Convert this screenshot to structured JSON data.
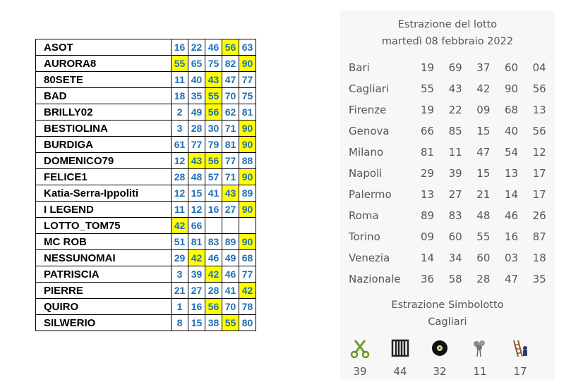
{
  "players": [
    {
      "name": "ASOT",
      "numbers": [
        "16",
        "22",
        "46",
        "56",
        "63"
      ],
      "highlighted": [
        false,
        false,
        false,
        true,
        false
      ]
    },
    {
      "name": "AURORA8",
      "numbers": [
        "55",
        "65",
        "75",
        "82",
        "90"
      ],
      "highlighted": [
        true,
        false,
        false,
        false,
        true
      ]
    },
    {
      "name": "80SETE",
      "numbers": [
        "11",
        "40",
        "43",
        "47",
        "77"
      ],
      "highlighted": [
        false,
        false,
        true,
        false,
        false
      ]
    },
    {
      "name": "BAD",
      "numbers": [
        "18",
        "35",
        "55",
        "70",
        "75"
      ],
      "highlighted": [
        false,
        false,
        true,
        false,
        false
      ]
    },
    {
      "name": "BRILLY02",
      "numbers": [
        "2",
        "49",
        "56",
        "62",
        "81"
      ],
      "highlighted": [
        false,
        false,
        true,
        false,
        false
      ]
    },
    {
      "name": "BESTIOLINA",
      "numbers": [
        "3",
        "28",
        "30",
        "71",
        "90"
      ],
      "highlighted": [
        false,
        false,
        false,
        false,
        true
      ]
    },
    {
      "name": "BURDIGA",
      "numbers": [
        "61",
        "77",
        "79",
        "81",
        "90"
      ],
      "highlighted": [
        false,
        false,
        false,
        false,
        true
      ]
    },
    {
      "name": "DOMENICO79",
      "numbers": [
        "12",
        "43",
        "56",
        "77",
        "88"
      ],
      "highlighted": [
        false,
        true,
        true,
        false,
        false
      ]
    },
    {
      "name": "FELICE1",
      "numbers": [
        "28",
        "48",
        "57",
        "71",
        "90"
      ],
      "highlighted": [
        false,
        false,
        false,
        false,
        true
      ]
    },
    {
      "name": "Katia-Serra-Ippoliti",
      "numbers": [
        "12",
        "15",
        "41",
        "43",
        "89"
      ],
      "highlighted": [
        false,
        false,
        false,
        true,
        false
      ]
    },
    {
      "name": "I LEGEND",
      "numbers": [
        "11",
        "12",
        "16",
        "27",
        "90"
      ],
      "highlighted": [
        false,
        false,
        false,
        false,
        true
      ]
    },
    {
      "name": "LOTTO_TOM75",
      "numbers": [
        "42",
        "66",
        "",
        "",
        ""
      ],
      "highlighted": [
        true,
        false,
        false,
        false,
        false
      ]
    },
    {
      "name": "MC ROB",
      "numbers": [
        "51",
        "81",
        "83",
        "89",
        "90"
      ],
      "highlighted": [
        false,
        false,
        false,
        false,
        true
      ]
    },
    {
      "name": "NESSUNOMAI",
      "numbers": [
        "29",
        "42",
        "46",
        "49",
        "68"
      ],
      "highlighted": [
        false,
        true,
        false,
        false,
        false
      ]
    },
    {
      "name": "PATRISCIA",
      "numbers": [
        "3",
        "39",
        "42",
        "46",
        "77"
      ],
      "highlighted": [
        false,
        false,
        true,
        false,
        false
      ]
    },
    {
      "name": "PIERRE",
      "numbers": [
        "21",
        "27",
        "28",
        "41",
        "42"
      ],
      "highlighted": [
        false,
        false,
        false,
        false,
        true
      ]
    },
    {
      "name": "QUIRO",
      "numbers": [
        "1",
        "16",
        "56",
        "70",
        "78"
      ],
      "highlighted": [
        false,
        false,
        true,
        false,
        false
      ]
    },
    {
      "name": "SILWERIO",
      "numbers": [
        "8",
        "15",
        "38",
        "55",
        "80"
      ],
      "highlighted": [
        false,
        false,
        false,
        true,
        false
      ]
    }
  ],
  "extraction": {
    "title": "Estrazione del lotto",
    "date": "martedì 08 febbraio 2022",
    "rows": [
      {
        "city": "Bari",
        "numbers": [
          "19",
          "69",
          "37",
          "60",
          "04"
        ]
      },
      {
        "city": "Cagliari",
        "numbers": [
          "55",
          "43",
          "42",
          "90",
          "56"
        ]
      },
      {
        "city": "Firenze",
        "numbers": [
          "19",
          "22",
          "09",
          "68",
          "13"
        ]
      },
      {
        "city": "Genova",
        "numbers": [
          "66",
          "85",
          "15",
          "40",
          "56"
        ]
      },
      {
        "city": "Milano",
        "numbers": [
          "81",
          "11",
          "47",
          "54",
          "12"
        ]
      },
      {
        "city": "Napoli",
        "numbers": [
          "29",
          "39",
          "15",
          "13",
          "17"
        ]
      },
      {
        "city": "Palermo",
        "numbers": [
          "13",
          "27",
          "21",
          "14",
          "17"
        ]
      },
      {
        "city": "Roma",
        "numbers": [
          "89",
          "83",
          "48",
          "46",
          "26"
        ]
      },
      {
        "city": "Torino",
        "numbers": [
          "09",
          "60",
          "55",
          "16",
          "87"
        ]
      },
      {
        "city": "Venezia",
        "numbers": [
          "14",
          "34",
          "60",
          "03",
          "18"
        ]
      },
      {
        "city": "Nazionale",
        "numbers": [
          "36",
          "58",
          "28",
          "47",
          "35"
        ]
      }
    ]
  },
  "simbolotto": {
    "title": "Estrazione Simbolotto",
    "city": "Cagliari",
    "symbols": [
      {
        "icon": "scissors-icon",
        "number": "39"
      },
      {
        "icon": "jail-bars-icon",
        "number": "44"
      },
      {
        "icon": "vinyl-record-icon",
        "number": "32"
      },
      {
        "icon": "flower-bouquet-icon",
        "number": "11"
      },
      {
        "icon": "ladder-thief-icon",
        "number": "17"
      }
    ]
  },
  "colors": {
    "highlight": "#ffff00",
    "number_blue": "#1f6fb5",
    "panel_bg": "#f7f7f7",
    "panel_text": "#555555"
  }
}
